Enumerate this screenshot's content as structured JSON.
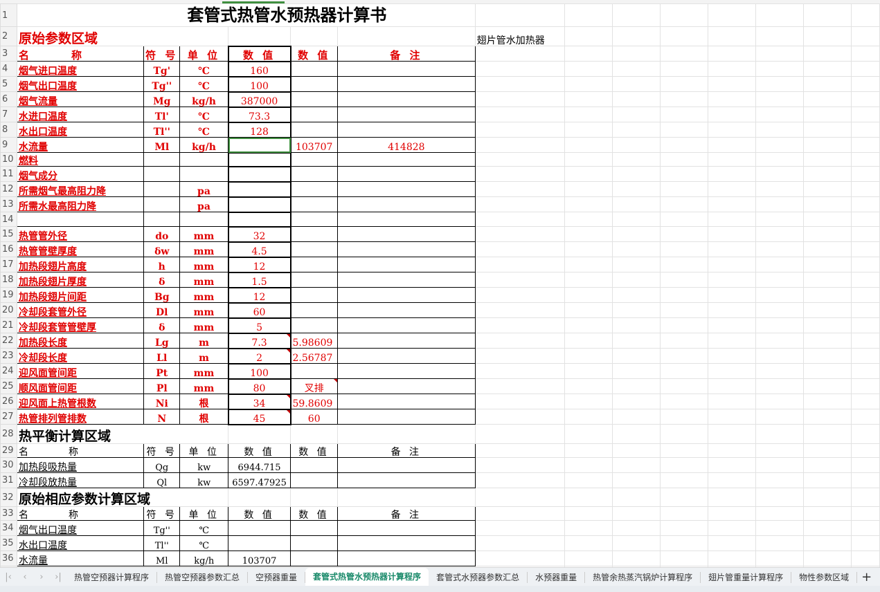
{
  "title": "套管式热管水预热器计算书",
  "side_note": "翅片管水加热器",
  "section1": "原始参数区域",
  "headers": {
    "name": "名　　　称",
    "symbol": "符 号",
    "unit": "单 位",
    "value": "数 值",
    "value2": "数 值",
    "remark": "备 注"
  },
  "params": [
    {
      "row": "4",
      "name": "烟气进口温度",
      "symbol": "Tg'",
      "unit": "℃",
      "value": "160",
      "value2": "",
      "remark": ""
    },
    {
      "row": "5",
      "name": "烟气出口温度",
      "symbol": "Tg''",
      "unit": "℃",
      "value": "100",
      "value2": "",
      "remark": ""
    },
    {
      "row": "6",
      "name": "烟气流量",
      "symbol": "Mg",
      "unit": "kg/h",
      "value": "387000",
      "value2": "",
      "remark": ""
    },
    {
      "row": "7",
      "name": "水进口温度",
      "symbol": "Tl'",
      "unit": "℃",
      "value": "73.3",
      "value2": "",
      "remark": ""
    },
    {
      "row": "8",
      "name": "水出口温度",
      "symbol": "Tl''",
      "unit": "℃",
      "value": "128",
      "value2": "",
      "remark": ""
    },
    {
      "row": "9",
      "name": "水流量",
      "symbol": "Ml",
      "unit": "kg/h",
      "value": "",
      "value2": "103707",
      "remark": "414828"
    },
    {
      "row": "10",
      "name": "燃料",
      "symbol": "",
      "unit": "",
      "value": "",
      "value2": "",
      "remark": ""
    },
    {
      "row": "11",
      "name": "烟气成分",
      "symbol": "",
      "unit": "",
      "value": "",
      "value2": "",
      "remark": ""
    },
    {
      "row": "12",
      "name": "所需烟气最高阻力降",
      "symbol": "",
      "unit": "pa",
      "value": "",
      "value2": "",
      "remark": ""
    },
    {
      "row": "13",
      "name": "所需水最高阻力降",
      "symbol": "",
      "unit": "pa",
      "value": "",
      "value2": "",
      "remark": ""
    },
    {
      "row": "14",
      "name": "",
      "symbol": "",
      "unit": "",
      "value": "",
      "value2": "",
      "remark": ""
    },
    {
      "row": "15",
      "name": "热管管外径",
      "symbol": "do",
      "unit": "mm",
      "value": "32",
      "value2": "",
      "remark": ""
    },
    {
      "row": "16",
      "name": "热管管壁厚度",
      "symbol": "δw",
      "unit": "mm",
      "value": "4.5",
      "value2": "",
      "remark": ""
    },
    {
      "row": "17",
      "name": "加热段翅片高度",
      "symbol": "h",
      "unit": "mm",
      "value": "12",
      "value2": "",
      "remark": ""
    },
    {
      "row": "18",
      "name": "加热段翅片厚度",
      "symbol": "δ",
      "unit": "mm",
      "value": "1.5",
      "value2": "",
      "remark": ""
    },
    {
      "row": "19",
      "name": "加热段翅片间距",
      "symbol": "Bg",
      "unit": "mm",
      "value": "12",
      "value2": "",
      "remark": ""
    },
    {
      "row": "20",
      "name": "冷却段套管外径",
      "symbol": "Dl",
      "unit": "mm",
      "value": "60",
      "value2": "",
      "remark": ""
    },
    {
      "row": "21",
      "name": "冷却段套管管壁厚",
      "symbol": "δ",
      "unit": "mm",
      "value": "5",
      "value2": "",
      "remark": ""
    },
    {
      "row": "22",
      "name": "加热段长度",
      "symbol": "Lg",
      "unit": "m",
      "value": "7.3",
      "value2": "5.98609",
      "remark": ""
    },
    {
      "row": "23",
      "name": "冷却段长度",
      "symbol": "Ll",
      "unit": "m",
      "value": "2",
      "value2": "2.56787",
      "remark": ""
    },
    {
      "row": "24",
      "name": "迎风面管间距",
      "symbol": "Pt",
      "unit": "mm",
      "value": "100",
      "value2": "",
      "remark": ""
    },
    {
      "row": "25",
      "name": "顺风面管间距",
      "symbol": "Pl",
      "unit": "mm",
      "value": "80",
      "value2": "叉排",
      "remark": ""
    },
    {
      "row": "26",
      "name": "迎风面上热管根数",
      "symbol": "Ni",
      "unit": "根",
      "value": "34",
      "value2": "59.8609",
      "remark": ""
    },
    {
      "row": "27",
      "name": "热管排列管排数",
      "symbol": "N",
      "unit": "根",
      "value": "45",
      "value2": "60",
      "remark": ""
    }
  ],
  "section2": "热平衡计算区域",
  "heat": [
    {
      "row": "30",
      "name": "加热段吸热量",
      "symbol": "Qg",
      "unit": "kw",
      "value": "6944.715",
      "value2": "",
      "remark": ""
    },
    {
      "row": "31",
      "name": "冷却段放热量",
      "symbol": "Ql",
      "unit": "kw",
      "value": "6597.47925",
      "value2": "",
      "remark": ""
    }
  ],
  "section3": "原始相应参数计算区域",
  "derived": [
    {
      "row": "34",
      "name": "烟气出口温度",
      "symbol": "Tg''",
      "unit": "℃",
      "value": "",
      "value2": "",
      "remark": ""
    },
    {
      "row": "35",
      "name": "水出口温度",
      "symbol": "Tl''",
      "unit": "℃",
      "value": "",
      "value2": "",
      "remark": ""
    },
    {
      "row": "36",
      "name": "水流量",
      "symbol": "Ml",
      "unit": "kg/h",
      "value": "103707",
      "value2": "",
      "remark": ""
    }
  ],
  "tabs": [
    "热管空预器计算程序",
    "热管空预器参数汇总",
    "空预器重量",
    "套管式热管水预热器计算程序",
    "套管式水预器参数汇总",
    "水预器重量",
    "热管余热蒸汽锅炉计算程序",
    "翅片管重量计算程序",
    "物性参数区域"
  ],
  "active_tab": 3
}
